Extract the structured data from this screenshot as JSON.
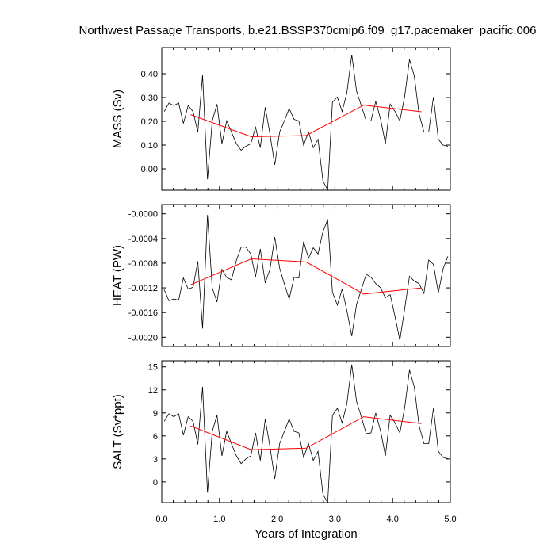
{
  "title": "Northwest Passage Transports, b.e21.BSSP370cmip6.f09_g17.pacemaker_pacific.006",
  "xlabel": "Years of Integration",
  "colors": {
    "raw": "#000000",
    "smooth": "#ff0000",
    "axis": "#000000"
  },
  "chart_data": [
    {
      "type": "line",
      "ylabel": "MASS (Sv)",
      "xlim": [
        0,
        5
      ],
      "ylim": [
        -0.09,
        0.51
      ],
      "yticks": [
        0.0,
        0.1,
        0.2,
        0.3,
        0.4
      ],
      "ytick_labels": [
        "0.00",
        "0.10",
        "0.20",
        "0.30",
        "0.40"
      ],
      "x": [
        0.042,
        0.125,
        0.208,
        0.292,
        0.375,
        0.458,
        0.542,
        0.625,
        0.708,
        0.792,
        0.875,
        0.958,
        1.042,
        1.125,
        1.208,
        1.292,
        1.375,
        1.458,
        1.542,
        1.625,
        1.708,
        1.792,
        1.875,
        1.958,
        2.042,
        2.125,
        2.208,
        2.292,
        2.375,
        2.458,
        2.542,
        2.625,
        2.708,
        2.792,
        2.875,
        2.958,
        3.042,
        3.125,
        3.208,
        3.292,
        3.375,
        3.458,
        3.542,
        3.625,
        3.708,
        3.792,
        3.875,
        3.958,
        4.042,
        4.125,
        4.208,
        4.292,
        4.375,
        4.458,
        4.542,
        4.625,
        4.708,
        4.792,
        4.875,
        4.958
      ],
      "series": [
        {
          "name": "monthly",
          "values": [
            0.241,
            0.277,
            0.266,
            0.277,
            0.191,
            0.266,
            0.241,
            0.155,
            0.395,
            -0.044,
            0.202,
            0.272,
            0.106,
            0.202,
            0.155,
            0.106,
            0.078,
            0.095,
            0.106,
            0.175,
            0.089,
            0.259,
            0.146,
            0.017,
            0.155,
            0.202,
            0.254,
            0.208,
            0.202,
            0.1,
            0.155,
            0.089,
            0.124,
            -0.051,
            -0.089,
            0.28,
            0.302,
            0.241,
            0.32,
            0.48,
            0.327,
            0.266,
            0.202,
            0.202,
            0.284,
            0.208,
            0.106,
            0.272,
            0.241,
            0.202,
            0.302,
            0.46,
            0.391,
            0.232,
            0.155,
            0.155,
            0.302,
            0.124,
            0.1,
            0.095
          ]
        },
        {
          "name": "annual",
          "x": [
            0.5,
            1.55,
            2.5,
            3.5,
            4.5
          ],
          "values": [
            0.228,
            0.135,
            0.14,
            0.268,
            0.24
          ]
        }
      ]
    },
    {
      "type": "line",
      "ylabel": "HEAT (PW)",
      "xlim": [
        0,
        5
      ],
      "ylim": [
        -0.00215,
        0.00015
      ],
      "yticks": [
        -0.002,
        -0.0016,
        -0.0012,
        -0.0008,
        -0.0004,
        0.0
      ],
      "ytick_labels": [
        "-0.0020",
        "-0.0016",
        "-0.0012",
        "-0.0008",
        "-0.0004",
        "-0.0000"
      ],
      "x": [
        0.042,
        0.125,
        0.208,
        0.292,
        0.375,
        0.458,
        0.542,
        0.625,
        0.708,
        0.792,
        0.875,
        0.958,
        1.042,
        1.125,
        1.208,
        1.292,
        1.375,
        1.458,
        1.542,
        1.625,
        1.708,
        1.792,
        1.875,
        1.958,
        2.042,
        2.125,
        2.208,
        2.292,
        2.375,
        2.458,
        2.542,
        2.625,
        2.708,
        2.792,
        2.875,
        2.958,
        3.042,
        3.125,
        3.208,
        3.292,
        3.375,
        3.458,
        3.542,
        3.625,
        3.708,
        3.792,
        3.875,
        3.958,
        4.042,
        4.125,
        4.208,
        4.292,
        4.375,
        4.458,
        4.542,
        4.625,
        4.708,
        4.792,
        4.875,
        4.958
      ],
      "series": [
        {
          "name": "monthly",
          "values": [
            -0.00123,
            -0.00141,
            -0.00138,
            -0.0014,
            -0.00104,
            -0.00122,
            -0.00119,
            -0.00077,
            -0.00186,
            -2e-05,
            -0.0012,
            -0.00143,
            -0.0009,
            -0.00103,
            -0.00107,
            -0.00076,
            -0.00054,
            -0.00054,
            -0.00065,
            -0.00102,
            -0.00057,
            -0.00112,
            -0.0009,
            -0.00038,
            -0.00088,
            -0.00114,
            -0.00138,
            -0.00103,
            -0.00104,
            -0.00045,
            -0.00072,
            -0.00055,
            -0.00065,
            -0.00029,
            -9e-05,
            -0.00127,
            -0.00148,
            -0.00122,
            -0.00157,
            -0.00198,
            -0.00147,
            -0.00123,
            -0.00098,
            -0.00103,
            -0.00113,
            -0.0012,
            -0.00136,
            -0.00131,
            -0.00167,
            -0.00205,
            -0.00155,
            -0.00101,
            -0.00109,
            -0.00113,
            -0.00129,
            -0.00075,
            -0.00082,
            -0.00128,
            -0.00089,
            -0.00069
          ]
        },
        {
          "name": "annual",
          "x": [
            0.5,
            1.55,
            2.5,
            3.5,
            4.5
          ],
          "values": [
            -0.00115,
            -0.00073,
            -0.00078,
            -0.0013,
            -0.0012
          ]
        }
      ]
    },
    {
      "type": "line",
      "ylabel": "SALT (Sv*ppt)",
      "xlim": [
        0,
        5
      ],
      "ylim": [
        -2.7,
        15.8
      ],
      "yticks": [
        0,
        3,
        6,
        9,
        12,
        15
      ],
      "ytick_labels": [
        "0",
        "3",
        "6",
        "9",
        "12",
        "15"
      ],
      "x": [
        0.042,
        0.125,
        0.208,
        0.292,
        0.375,
        0.458,
        0.542,
        0.625,
        0.708,
        0.792,
        0.875,
        0.958,
        1.042,
        1.125,
        1.208,
        1.292,
        1.375,
        1.458,
        1.542,
        1.625,
        1.708,
        1.792,
        1.875,
        1.958,
        2.042,
        2.125,
        2.208,
        2.292,
        2.375,
        2.458,
        2.542,
        2.625,
        2.708,
        2.792,
        2.875,
        2.958,
        3.042,
        3.125,
        3.208,
        3.292,
        3.375,
        3.458,
        3.542,
        3.625,
        3.708,
        3.792,
        3.875,
        3.958,
        4.042,
        4.125,
        4.208,
        4.292,
        4.375,
        4.458,
        4.542,
        4.625,
        4.708,
        4.792,
        4.875,
        4.958
      ],
      "series": [
        {
          "name": "monthly",
          "values": [
            7.9,
            8.9,
            8.5,
            8.9,
            6.1,
            8.5,
            7.9,
            4.9,
            12.4,
            -1.4,
            6.6,
            8.7,
            3.4,
            6.6,
            5.0,
            3.4,
            2.4,
            3.0,
            3.4,
            6.4,
            2.8,
            8.2,
            4.6,
            0.4,
            5.0,
            6.6,
            8.2,
            6.6,
            6.4,
            3.2,
            5.0,
            2.8,
            4.0,
            -1.6,
            -2.7,
            8.7,
            9.6,
            7.7,
            10.2,
            15.3,
            10.5,
            8.5,
            6.3,
            6.4,
            9.0,
            6.6,
            3.4,
            8.7,
            7.7,
            6.4,
            9.6,
            14.6,
            12.4,
            7.4,
            5.0,
            5.0,
            9.6,
            4.0,
            3.2,
            3.0
          ]
        },
        {
          "name": "annual",
          "x": [
            0.5,
            1.55,
            2.5,
            3.5,
            4.5
          ],
          "values": [
            7.3,
            4.2,
            4.4,
            8.5,
            7.6
          ]
        }
      ]
    }
  ],
  "xaxis": {
    "ticks": [
      0,
      1,
      2,
      3,
      4,
      5
    ],
    "tick_labels": [
      "0.0",
      "1.0",
      "2.0",
      "3.0",
      "4.0",
      "5.0"
    ]
  }
}
